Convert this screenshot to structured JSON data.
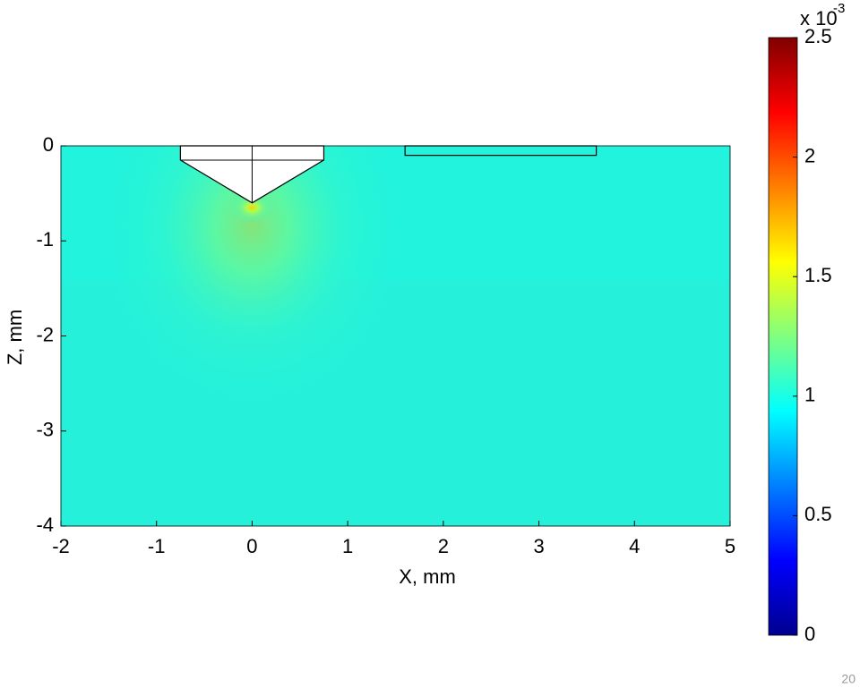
{
  "chart_data": {
    "type": "heatmap",
    "x_label": "X, mm",
    "y_label": "Z, mm",
    "xlim": [
      -2,
      5
    ],
    "xticks": [
      -2,
      -1,
      0,
      1,
      2,
      3,
      4,
      5
    ],
    "ylim": [
      -4,
      0
    ],
    "yticks": [
      -4,
      -3,
      -2,
      -1,
      0
    ],
    "colormap": "jet",
    "clim": [
      0,
      2.5
    ],
    "cticks": [
      0,
      0.5,
      1,
      1.5,
      2,
      2.5
    ],
    "colorbar_multiplier": "x 10",
    "colorbar_exponent": "-3"
  },
  "page_number": "20"
}
